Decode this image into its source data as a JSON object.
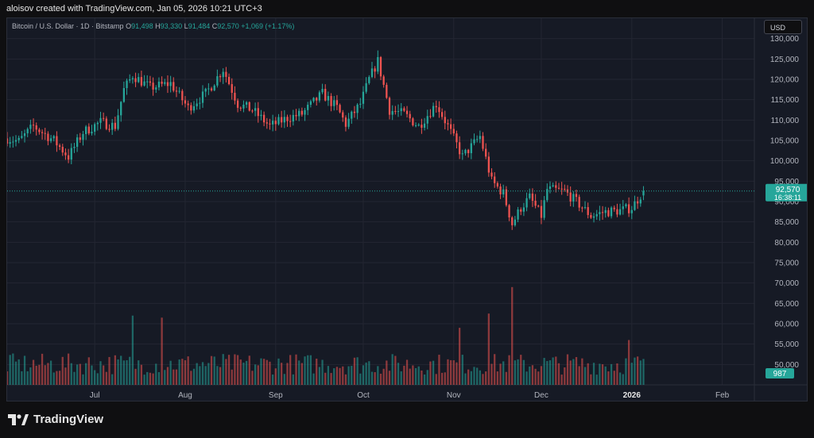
{
  "header": {
    "credit": "aloisov created with TradingView.com, Jan 05, 2026 10:21 UTC+3"
  },
  "legend": {
    "symbol": "Bitcoin / U.S. Dollar · 1D · Bitstamp",
    "open_k": "O",
    "open": "91,498",
    "high_k": "H",
    "high": "93,330",
    "low_k": "L",
    "low": "91,484",
    "close_k": "C",
    "close": "92,570",
    "change": "+1,069 (+1.17%)"
  },
  "currency": "USD",
  "footer": {
    "brand": "TradingView",
    "logo_icon": "tradingview-logo-icon"
  },
  "colors": {
    "up": "#26a69a",
    "down": "#ef5350",
    "grid": "#232632",
    "bg": "#161a25"
  },
  "chart_data": {
    "type": "candlestick",
    "symbol": "Bitcoin / U.S. Dollar",
    "interval": "1D",
    "exchange": "Bitstamp",
    "ylim": [
      45000,
      135000
    ],
    "y_ticks": [
      "50,000",
      "55,000",
      "60,000",
      "65,000",
      "70,000",
      "75,000",
      "80,000",
      "85,000",
      "90,000",
      "95,000",
      "100,000",
      "105,000",
      "110,000",
      "115,000",
      "120,000",
      "125,000",
      "130,000"
    ],
    "x_ticks": [
      {
        "label": "Jul",
        "date": "2025-07-01",
        "bold": false
      },
      {
        "label": "Aug",
        "date": "2025-08-01",
        "bold": false
      },
      {
        "label": "Sep",
        "date": "2025-09-01",
        "bold": false
      },
      {
        "label": "Oct",
        "date": "2025-10-01",
        "bold": false
      },
      {
        "label": "Nov",
        "date": "2025-11-01",
        "bold": false
      },
      {
        "label": "Dec",
        "date": "2025-12-01",
        "bold": false
      },
      {
        "label": "2026",
        "date": "2026-01-01",
        "bold": true
      },
      {
        "label": "Feb",
        "date": "2026-02-01",
        "bold": false
      }
    ],
    "x_range": [
      "2025-06-01",
      "2026-02-12"
    ],
    "last_price": {
      "label": "92,570",
      "countdown": "16:38:11",
      "value": 92570
    },
    "last_volume": {
      "label": "987"
    },
    "close_waypoints": [
      [
        "2025-06-01",
        105500
      ],
      [
        "2025-06-05",
        104800
      ],
      [
        "2025-06-10",
        108500
      ],
      [
        "2025-06-17",
        105000
      ],
      [
        "2025-06-22",
        101000
      ],
      [
        "2025-06-27",
        107000
      ],
      [
        "2025-07-03",
        109500
      ],
      [
        "2025-07-08",
        108500
      ],
      [
        "2025-07-11",
        117500
      ],
      [
        "2025-07-14",
        121000
      ],
      [
        "2025-07-20",
        118000
      ],
      [
        "2025-07-27",
        119000
      ],
      [
        "2025-08-02",
        113000
      ],
      [
        "2025-08-08",
        116500
      ],
      [
        "2025-08-14",
        122500
      ],
      [
        "2025-08-19",
        114000
      ],
      [
        "2025-08-24",
        112500
      ],
      [
        "2025-08-30",
        108500
      ],
      [
        "2025-09-05",
        110500
      ],
      [
        "2025-09-10",
        111500
      ],
      [
        "2025-09-17",
        116500
      ],
      [
        "2025-09-22",
        113000
      ],
      [
        "2025-09-25",
        109000
      ],
      [
        "2025-09-30",
        114000
      ],
      [
        "2025-10-03",
        120000
      ],
      [
        "2025-10-06",
        124500
      ],
      [
        "2025-10-10",
        112500
      ],
      [
        "2025-10-15",
        111500
      ],
      [
        "2025-10-20",
        108500
      ],
      [
        "2025-10-26",
        114000
      ],
      [
        "2025-10-30",
        108500
      ],
      [
        "2025-11-04",
        101000
      ],
      [
        "2025-11-10",
        106000
      ],
      [
        "2025-11-14",
        95000
      ],
      [
        "2025-11-18",
        92000
      ],
      [
        "2025-11-21",
        84500
      ],
      [
        "2025-11-24",
        88500
      ],
      [
        "2025-11-27",
        91000
      ],
      [
        "2025-12-01",
        86500
      ],
      [
        "2025-12-03",
        93000
      ],
      [
        "2025-12-09",
        92500
      ],
      [
        "2025-12-13",
        90000
      ],
      [
        "2025-12-18",
        86500
      ],
      [
        "2025-12-23",
        87500
      ],
      [
        "2025-12-28",
        87800
      ],
      [
        "2026-01-01",
        88500
      ],
      [
        "2026-01-05",
        92570
      ]
    ],
    "volume_spikes": [
      [
        "2025-07-14",
        62000
      ],
      [
        "2025-07-24",
        61500
      ],
      [
        "2025-11-03",
        59000
      ],
      [
        "2025-11-13",
        62500
      ],
      [
        "2025-11-21",
        69000
      ],
      [
        "2025-12-31",
        56000
      ]
    ]
  }
}
